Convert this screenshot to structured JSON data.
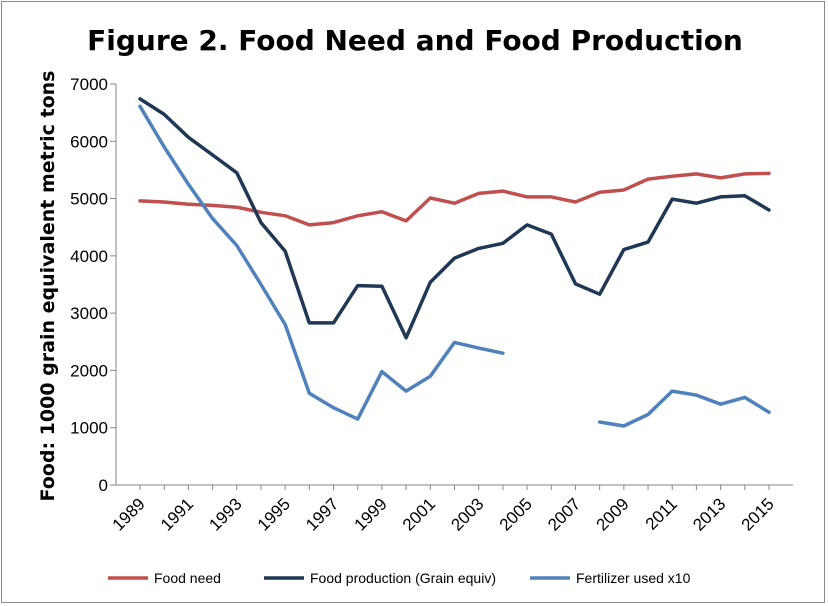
{
  "chart_data": {
    "type": "line",
    "title": "Figure 2. Food Need and Food Production",
    "xlabel": "",
    "ylabel": "Food: 1000 grain equivalent metric tons",
    "xlim": [
      1989,
      2015
    ],
    "ylim": [
      0,
      7000
    ],
    "y_ticks": [
      0,
      1000,
      2000,
      3000,
      4000,
      5000,
      6000,
      7000
    ],
    "x_ticks": [
      1989,
      1991,
      1993,
      1995,
      1997,
      1999,
      2001,
      2003,
      2005,
      2007,
      2009,
      2011,
      2013,
      2015
    ],
    "grid": false,
    "legend_position": "bottom",
    "x": [
      1989,
      1990,
      1991,
      1992,
      1993,
      1994,
      1995,
      1996,
      1997,
      1998,
      1999,
      2000,
      2001,
      2002,
      2003,
      2004,
      2005,
      2006,
      2007,
      2008,
      2009,
      2010,
      2011,
      2012,
      2013,
      2014,
      2015
    ],
    "series": [
      {
        "name": "Food need",
        "color": "#c0504d",
        "values": [
          4960,
          4940,
          4900,
          4880,
          4850,
          4760,
          4700,
          4540,
          4580,
          4700,
          4770,
          4610,
          5010,
          4920,
          5090,
          5130,
          5030,
          5030,
          4940,
          5110,
          5150,
          5340,
          5390,
          5430,
          5360,
          5430,
          5440
        ]
      },
      {
        "name": "Food production (Grain equiv)",
        "color": "#1f3855",
        "values": [
          6740,
          6470,
          6070,
          5760,
          5450,
          4580,
          4080,
          2830,
          2830,
          3480,
          3470,
          2570,
          3540,
          3960,
          4130,
          4220,
          4540,
          4380,
          3510,
          3330,
          4110,
          4240,
          4990,
          4920,
          5030,
          5050,
          4800
        ]
      },
      {
        "name": "Fertilizer used x10",
        "color": "#4f81bd",
        "values": [
          6610,
          5900,
          5250,
          4650,
          4180,
          3500,
          2800,
          1600,
          1350,
          1150,
          1980,
          1640,
          1900,
          2490,
          2390,
          2300,
          null,
          null,
          null,
          1100,
          1030,
          1230,
          1640,
          1570,
          1410,
          1530,
          1270
        ]
      }
    ]
  }
}
